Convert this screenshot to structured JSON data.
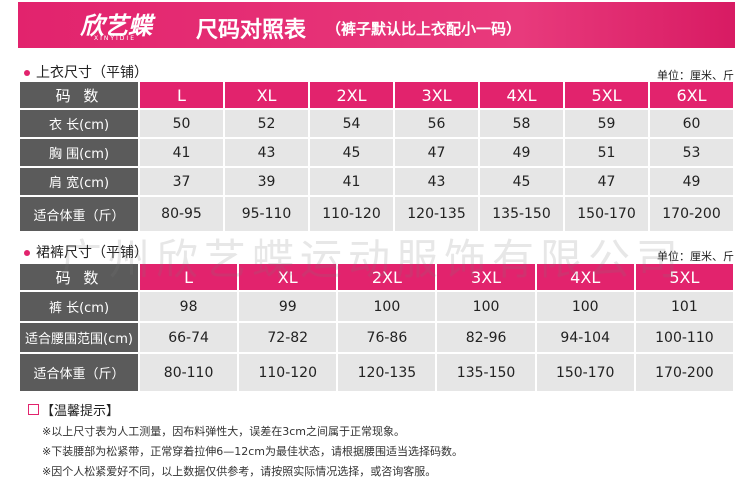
{
  "header": {
    "logo": "欣艺蝶",
    "logo_sub": "XINYIDIE",
    "title": "尺码对照表",
    "subtitle": "（裤子默认比上衣配小一码）"
  },
  "tops": {
    "title": "上衣尺寸（平铺）",
    "unit": "单位：厘米、斤",
    "header": [
      "码 数",
      "L",
      "XL",
      "2XL",
      "3XL",
      "4XL",
      "5XL",
      "6XL"
    ],
    "rows": [
      [
        "衣 长(cm)",
        50,
        52,
        54,
        56,
        58,
        59,
        60
      ],
      [
        "胸 围(cm)",
        41,
        43,
        45,
        47,
        49,
        51,
        53
      ],
      [
        "肩 宽(cm)",
        37,
        39,
        41,
        43,
        45,
        47,
        49
      ],
      [
        "适合体重（斤）",
        "80-95",
        "95-110",
        "110-120",
        "120-135",
        "135-150",
        "150-170",
        "170-200"
      ]
    ]
  },
  "bottoms": {
    "title": "裙裤尺寸（平铺）",
    "unit": "单位：厘米、斤",
    "header": [
      "码 数",
      "L",
      "XL",
      "2XL",
      "3XL",
      "4XL",
      "5XL"
    ],
    "rows": [
      [
        "裤 长(cm)",
        98,
        99,
        100,
        100,
        100,
        101
      ],
      [
        "适合腰围范围(cm)",
        "66-74",
        "72-82",
        "76-86",
        "82-96",
        "94-104",
        "100-110"
      ],
      [
        "适合体重（斤）",
        "80-110",
        "110-120",
        "120-135",
        "135-150",
        "150-170",
        "170-200"
      ]
    ]
  },
  "watermark": "广州欣艺蝶运动服饰有限公司",
  "notes": {
    "title": "【温馨提示】",
    "items": [
      "※以上尺寸表为人工测量，因布料弹性大，误差在3cm之间属于正常现象。",
      "※下装腰部为松紧带，正常穿着拉伸6—12cm为最佳状态，请根据腰围适当选择码数。",
      "※因个人松紧爱好不同，以上数据仅供参考，请按照实际情况选择，或咨询客服。"
    ]
  }
}
